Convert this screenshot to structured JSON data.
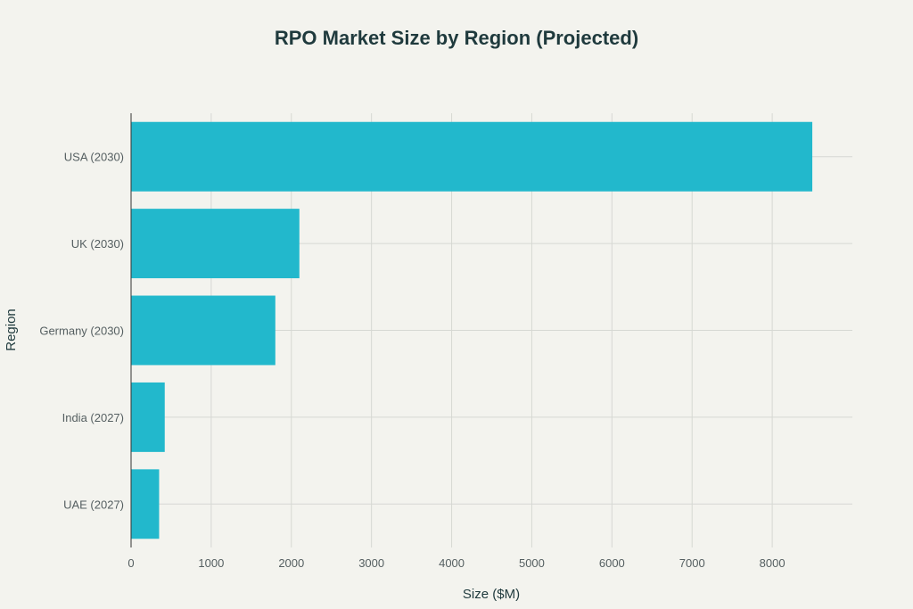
{
  "chart_data": {
    "type": "bar",
    "orientation": "horizontal",
    "title": "RPO Market Size by Region (Projected)",
    "xlabel": "Size ($M)",
    "ylabel": "Region",
    "categories": [
      "USA (2030)",
      "UK (2030)",
      "Germany (2030)",
      "India (2027)",
      "UAE (2027)"
    ],
    "values": [
      8500,
      2100,
      1800,
      420,
      350
    ],
    "xlim": [
      0,
      9000
    ],
    "xticks": [
      0,
      1000,
      2000,
      3000,
      4000,
      5000,
      6000,
      7000,
      8000
    ],
    "grid": true,
    "bar_color": "#22b8cc"
  }
}
